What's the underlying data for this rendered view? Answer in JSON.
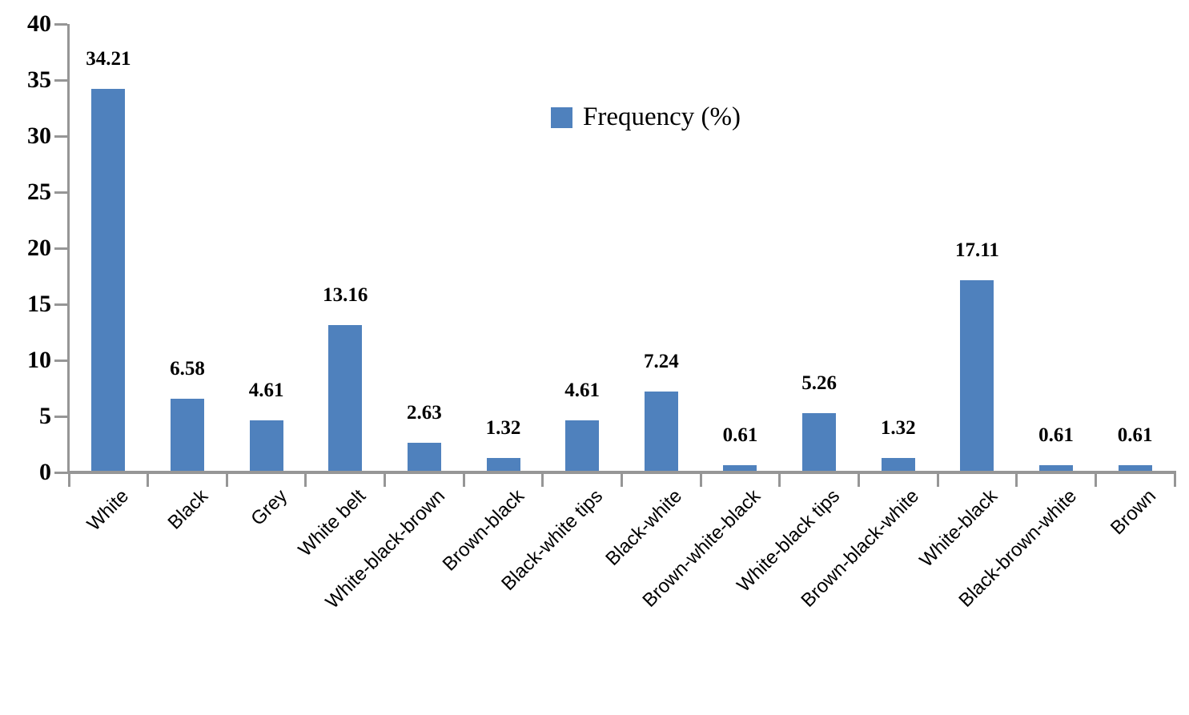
{
  "chart_data": {
    "type": "bar",
    "title": "",
    "legend": "Frequency (%)",
    "legend_position": "top-center",
    "categories": [
      "White",
      "Black",
      "Grey",
      "White belt",
      "White-black-brown",
      "Brown-black",
      "Black-white tips",
      "Black-white",
      "Brown-white-black",
      "White-black tips",
      "Brown-black-white",
      "White-black",
      "Black-brown-white",
      "Brown"
    ],
    "values": [
      34.21,
      6.58,
      4.61,
      13.16,
      2.63,
      1.32,
      4.61,
      7.24,
      0.61,
      5.26,
      1.32,
      17.11,
      0.61,
      0.61
    ],
    "data_labels": [
      "34.21",
      "6.58",
      "4.61",
      "13.16",
      "2.63",
      "1.32",
      "4.61",
      "7.24",
      "0.61",
      "5.26",
      "1.32",
      "17.11",
      "0.61",
      "0.61"
    ],
    "xlabel": "",
    "ylabel": "",
    "ylim": [
      0,
      40
    ],
    "ytick_step": 5,
    "ytick_labels": [
      "0",
      "5",
      "10",
      "15",
      "20",
      "25",
      "30",
      "35",
      "40"
    ],
    "grid": false,
    "colors": {
      "bar": "#4F81BD",
      "axis": "#969696",
      "text": "#000000"
    }
  }
}
